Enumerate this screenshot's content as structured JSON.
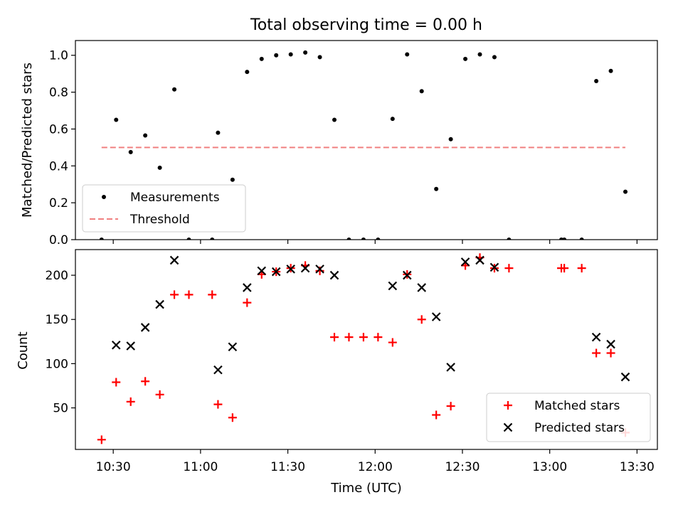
{
  "chart_data": [
    {
      "type": "scatter",
      "title": "Total observing time = 0.00 h",
      "ylabel": "Matched/Predicted stars",
      "xlabel": "",
      "xlim": [
        "10:17",
        "13:37"
      ],
      "ylim": [
        0,
        1.08
      ],
      "yticks": [
        "0.0",
        "0.2",
        "0.4",
        "0.6",
        "0.8",
        "1.0"
      ],
      "grid": false,
      "legend_position": "lower-left",
      "series": [
        {
          "name": "Measurements",
          "color": "#000000",
          "marker": "dot",
          "points": [
            [
              "10:26",
              0.0
            ],
            [
              "10:31",
              0.65
            ],
            [
              "10:36",
              0.475
            ],
            [
              "10:41",
              0.565
            ],
            [
              "10:46",
              0.39
            ],
            [
              "10:51",
              0.815
            ],
            [
              "10:56",
              0.0
            ],
            [
              "11:04",
              0.0
            ],
            [
              "11:06",
              0.58
            ],
            [
              "11:11",
              0.325
            ],
            [
              "11:16",
              0.91
            ],
            [
              "11:21",
              0.98
            ],
            [
              "11:26",
              1.0
            ],
            [
              "11:31",
              1.005
            ],
            [
              "11:36",
              1.015
            ],
            [
              "11:41",
              0.99
            ],
            [
              "11:46",
              0.65
            ],
            [
              "11:51",
              0.0
            ],
            [
              "11:56",
              0.0
            ],
            [
              "12:01",
              0.0
            ],
            [
              "12:06",
              0.655
            ],
            [
              "12:11",
              1.005
            ],
            [
              "12:16",
              0.805
            ],
            [
              "12:21",
              0.275
            ],
            [
              "12:26",
              0.545
            ],
            [
              "12:31",
              0.98
            ],
            [
              "12:36",
              1.005
            ],
            [
              "12:41",
              0.99
            ],
            [
              "12:46",
              0.0
            ],
            [
              "13:04",
              0.0
            ],
            [
              "13:05",
              0.0
            ],
            [
              "13:11",
              0.0
            ],
            [
              "13:16",
              0.86
            ],
            [
              "13:21",
              0.915
            ],
            [
              "13:26",
              0.26
            ]
          ]
        },
        {
          "name": "Threshold",
          "color": "#f08080",
          "style": "dashed",
          "points": [
            [
              "10:26",
              0.5
            ],
            [
              "13:26",
              0.5
            ]
          ]
        }
      ]
    },
    {
      "type": "scatter",
      "title": "",
      "xlabel": "Time (UTC)",
      "ylabel": "Count",
      "xlim": [
        "10:17",
        "13:37"
      ],
      "ylim": [
        3,
        229
      ],
      "xticks": [
        "10:30",
        "11:00",
        "11:30",
        "12:00",
        "12:30",
        "13:00",
        "13:30"
      ],
      "yticks": [
        "50",
        "100",
        "150",
        "200"
      ],
      "grid": false,
      "legend_position": "lower-right",
      "series": [
        {
          "name": "Matched stars",
          "color": "#ff0000",
          "marker": "plus",
          "points": [
            [
              "10:26",
              14
            ],
            [
              "10:31",
              79
            ],
            [
              "10:36",
              57
            ],
            [
              "10:41",
              80
            ],
            [
              "10:46",
              65
            ],
            [
              "10:51",
              178
            ],
            [
              "10:56",
              178
            ],
            [
              "11:04",
              178
            ],
            [
              "11:06",
              54
            ],
            [
              "11:11",
              39
            ],
            [
              "11:16",
              169
            ],
            [
              "11:21",
              201
            ],
            [
              "11:26",
              204
            ],
            [
              "11:31",
              208
            ],
            [
              "11:36",
              211
            ],
            [
              "11:41",
              205
            ],
            [
              "11:46",
              130
            ],
            [
              "11:51",
              130
            ],
            [
              "11:56",
              130
            ],
            [
              "12:01",
              130
            ],
            [
              "12:06",
              124
            ],
            [
              "12:11",
              201
            ],
            [
              "12:16",
              150
            ],
            [
              "12:21",
              42
            ],
            [
              "12:26",
              52
            ],
            [
              "12:31",
              211
            ],
            [
              "12:36",
              220
            ],
            [
              "12:41",
              208
            ],
            [
              "12:46",
              208
            ],
            [
              "13:04",
              208
            ],
            [
              "13:05",
              208
            ],
            [
              "13:11",
              208
            ],
            [
              "13:16",
              112
            ],
            [
              "13:21",
              112
            ],
            [
              "13:26",
              22
            ]
          ]
        },
        {
          "name": "Predicted stars",
          "color": "#000000",
          "marker": "x",
          "points": [
            [
              "10:31",
              121
            ],
            [
              "10:36",
              120
            ],
            [
              "10:41",
              141
            ],
            [
              "10:46",
              167
            ],
            [
              "10:51",
              217
            ],
            [
              "11:06",
              93
            ],
            [
              "11:11",
              119
            ],
            [
              "11:16",
              186
            ],
            [
              "11:21",
              205
            ],
            [
              "11:26",
              204
            ],
            [
              "11:31",
              207
            ],
            [
              "11:36",
              208
            ],
            [
              "11:41",
              207
            ],
            [
              "11:46",
              200
            ],
            [
              "12:06",
              188
            ],
            [
              "12:11",
              200
            ],
            [
              "12:16",
              186
            ],
            [
              "12:21",
              153
            ],
            [
              "12:26",
              96
            ],
            [
              "12:31",
              215
            ],
            [
              "12:36",
              217
            ],
            [
              "12:41",
              209
            ],
            [
              "13:16",
              130
            ],
            [
              "13:21",
              122
            ],
            [
              "13:26",
              85
            ]
          ]
        }
      ]
    }
  ]
}
